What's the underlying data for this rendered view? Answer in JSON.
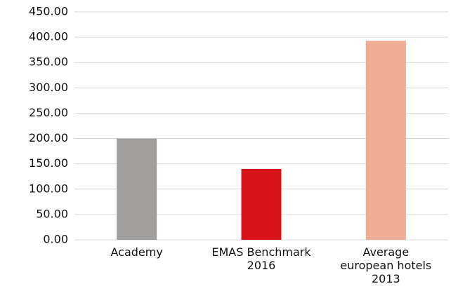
{
  "chart_data": {
    "type": "bar",
    "categories": [
      "Academy",
      "EMAS Benchmark\n2016",
      "Average\neuropean hotels\n2013"
    ],
    "values": [
      200,
      140,
      393
    ],
    "colors": [
      "#a09f9d",
      "#d7141a",
      "#f0ad93"
    ],
    "ylim": [
      0,
      450
    ],
    "yticks": [
      {
        "value": 0,
        "label": "0.00"
      },
      {
        "value": 50,
        "label": "50.00"
      },
      {
        "value": 100,
        "label": "100.00"
      },
      {
        "value": 150,
        "label": "150.00"
      },
      {
        "value": 200,
        "label": "200.00"
      },
      {
        "value": 250,
        "label": "250.00"
      },
      {
        "value": 300,
        "label": "300.00"
      },
      {
        "value": 350,
        "label": "350.00"
      },
      {
        "value": 400,
        "label": "400.00"
      },
      {
        "value": 450,
        "label": "450.00"
      }
    ],
    "grid": true
  }
}
